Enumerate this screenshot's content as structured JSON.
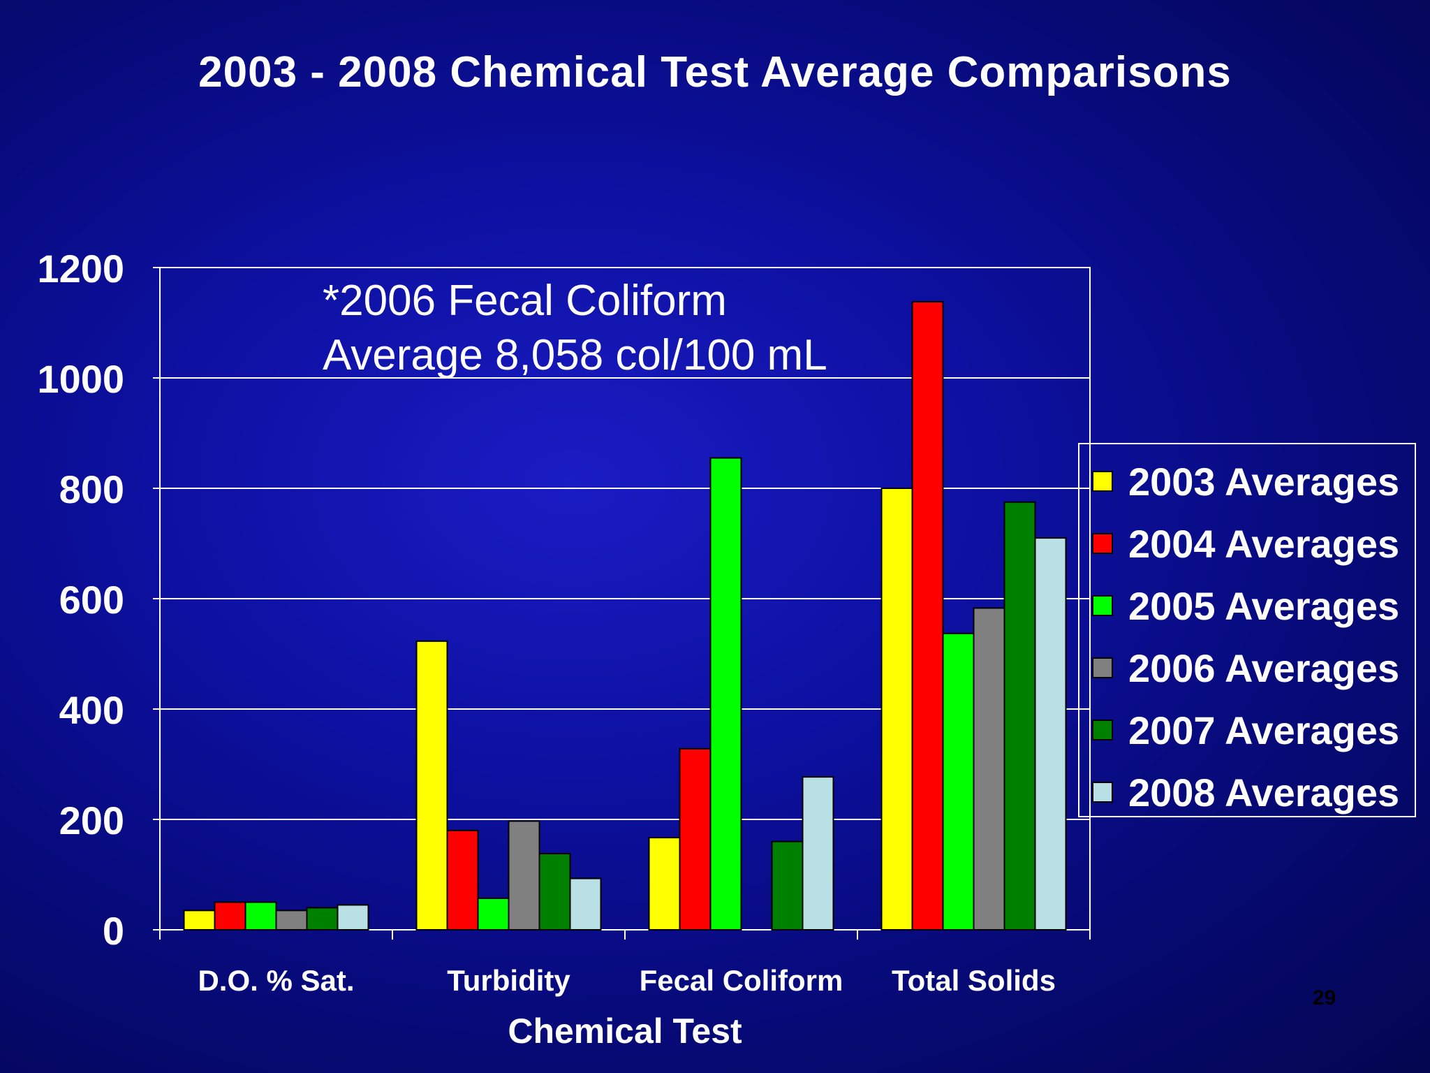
{
  "chart_data": {
    "type": "bar",
    "title": "2003 - 2008 Chemical Test Average Comparisons",
    "xlabel": "Chemical Test",
    "ylabel": "",
    "ylim": [
      0,
      1200
    ],
    "yticks": [
      "0",
      "200",
      "400",
      "600",
      "800",
      "1000",
      "1200"
    ],
    "grid": true,
    "legend_position": "right",
    "categories": [
      "D.O. % Sat.",
      "Turbidity",
      "Fecal Coliform",
      "Total Solids"
    ],
    "series": [
      {
        "name": "2003 Averages",
        "color": "#ffff00",
        "values": [
          35,
          523,
          167,
          800
        ]
      },
      {
        "name": "2004 Averages",
        "color": "#ff0000",
        "values": [
          50,
          180,
          328,
          1138
        ]
      },
      {
        "name": "2005 Averages",
        "color": "#00ff00",
        "values": [
          50,
          57,
          855,
          537
        ]
      },
      {
        "name": "2006 Averages",
        "color": "#808080",
        "values": [
          35,
          197,
          0,
          583
        ]
      },
      {
        "name": "2007 Averages",
        "color": "#008000",
        "values": [
          40,
          138,
          160,
          775
        ]
      },
      {
        "name": "2008 Averages",
        "color": "#b9e0e5",
        "values": [
          45,
          93,
          277,
          710
        ]
      }
    ],
    "annotation": [
      "*2006 Fecal Coliform",
      "Average 8,058 col/100 mL"
    ]
  },
  "slide_number": "29"
}
